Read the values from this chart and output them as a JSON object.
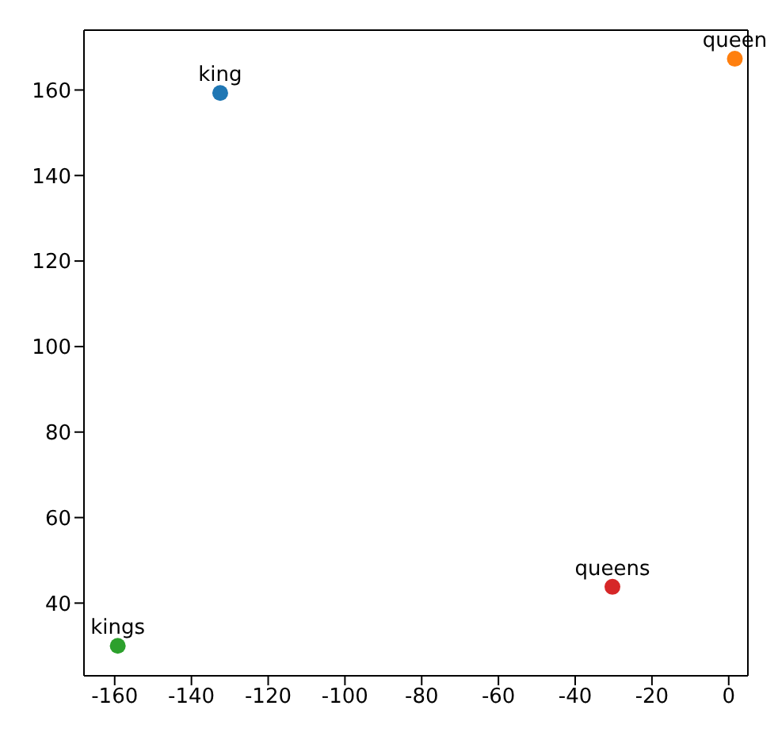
{
  "chart_data": {
    "type": "scatter",
    "xlim": [
      -168,
      5
    ],
    "ylim": [
      23,
      174
    ],
    "xticks": [
      -160,
      -140,
      -120,
      -100,
      -80,
      -60,
      -40,
      -20,
      0
    ],
    "yticks": [
      40,
      60,
      80,
      100,
      120,
      140,
      160
    ],
    "legend": false,
    "marker": "circle",
    "series": [
      {
        "name": "king",
        "color": "#1f77b4",
        "x": [
          -132.5
        ],
        "values": [
          159.3
        ]
      },
      {
        "name": "queen",
        "color": "#ff7f0e",
        "x": [
          1.6
        ],
        "values": [
          167.3
        ]
      },
      {
        "name": "kings",
        "color": "#2ca02c",
        "x": [
          -159.2
        ],
        "values": [
          30
        ]
      },
      {
        "name": "queens",
        "color": "#d62728",
        "x": [
          -30.3
        ],
        "values": [
          43.8
        ]
      }
    ]
  }
}
